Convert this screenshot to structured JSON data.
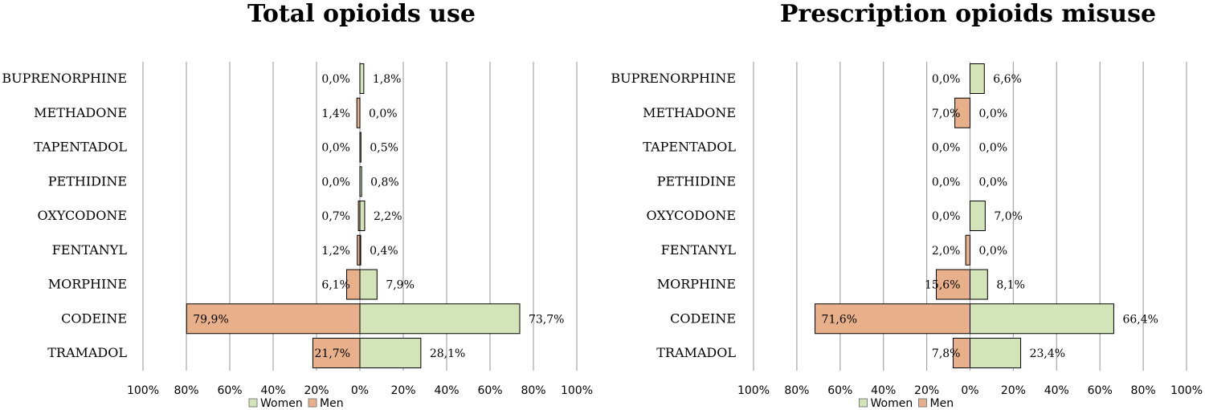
{
  "colors": {
    "women": "#d2e4b8",
    "men": "#e8b08a",
    "bar_stroke": "#000000",
    "grid": "#a6a6a6"
  },
  "legend": {
    "women_label": "Women",
    "men_label": "Men"
  },
  "chart_data": [
    {
      "type": "bar",
      "orientation": "horizontal-diverging",
      "title": "Total opioids use",
      "categories": [
        "BUPRENORPHINE",
        "METHADONE",
        "TAPENTADOL",
        "PETHIDINE",
        "OXYCODONE",
        "FENTANYL",
        "MORPHINE",
        "CODEINE",
        "TRAMADOL"
      ],
      "series": [
        {
          "name": "Men",
          "values": [
            0.0,
            1.4,
            0.0,
            0.0,
            0.7,
            1.2,
            6.1,
            79.9,
            21.7
          ],
          "labels": [
            "0,0%",
            "1,4%",
            "0,0%",
            "0,0%",
            "0,7%",
            "1,2%",
            "6,1%",
            "79,9%",
            "21,7%"
          ]
        },
        {
          "name": "Women",
          "values": [
            1.8,
            0.0,
            0.5,
            0.8,
            2.2,
            0.4,
            7.9,
            73.7,
            28.1
          ],
          "labels": [
            "1,8%",
            "0,0%",
            "0,5%",
            "0,8%",
            "2,2%",
            "0,4%",
            "7,9%",
            "73,7%",
            "28,1%"
          ]
        }
      ],
      "ticks": [
        "100%",
        "80%",
        "60%",
        "40%",
        "20%",
        "0%",
        "20%",
        "40%",
        "60%",
        "80%",
        "100%"
      ],
      "xlim": [
        -100,
        100
      ],
      "grid": true,
      "legend_position": "bottom"
    },
    {
      "type": "bar",
      "orientation": "horizontal-diverging",
      "title": "Prescription opioids misuse",
      "categories": [
        "BUPRENORPHINE",
        "METHADONE",
        "TAPENTADOL",
        "PETHIDINE",
        "OXYCODONE",
        "FENTANYL",
        "MORPHINE",
        "CODEINE",
        "TRAMADOL"
      ],
      "series": [
        {
          "name": "Men",
          "values": [
            0.0,
            7.0,
            0.0,
            0.0,
            0.0,
            2.0,
            15.6,
            71.6,
            7.8
          ],
          "labels": [
            "0,0%",
            "7,0%",
            "0,0%",
            "0,0%",
            "0,0%",
            "2,0%",
            "15,6%",
            "71,6%",
            "7,8%"
          ]
        },
        {
          "name": "Women",
          "values": [
            6.6,
            0.0,
            0.0,
            0.0,
            7.0,
            0.0,
            8.1,
            66.4,
            23.4
          ],
          "labels": [
            "6,6%",
            "0,0%",
            "0,0%",
            "0,0%",
            "7,0%",
            "0,0%",
            "8,1%",
            "66,4%",
            "23,4%"
          ]
        }
      ],
      "ticks": [
        "100%",
        "80%",
        "60%",
        "40%",
        "20%",
        "0%",
        "20%",
        "40%",
        "60%",
        "80%",
        "100%"
      ],
      "xlim": [
        -100,
        100
      ],
      "grid": true,
      "legend_position": "bottom"
    }
  ]
}
